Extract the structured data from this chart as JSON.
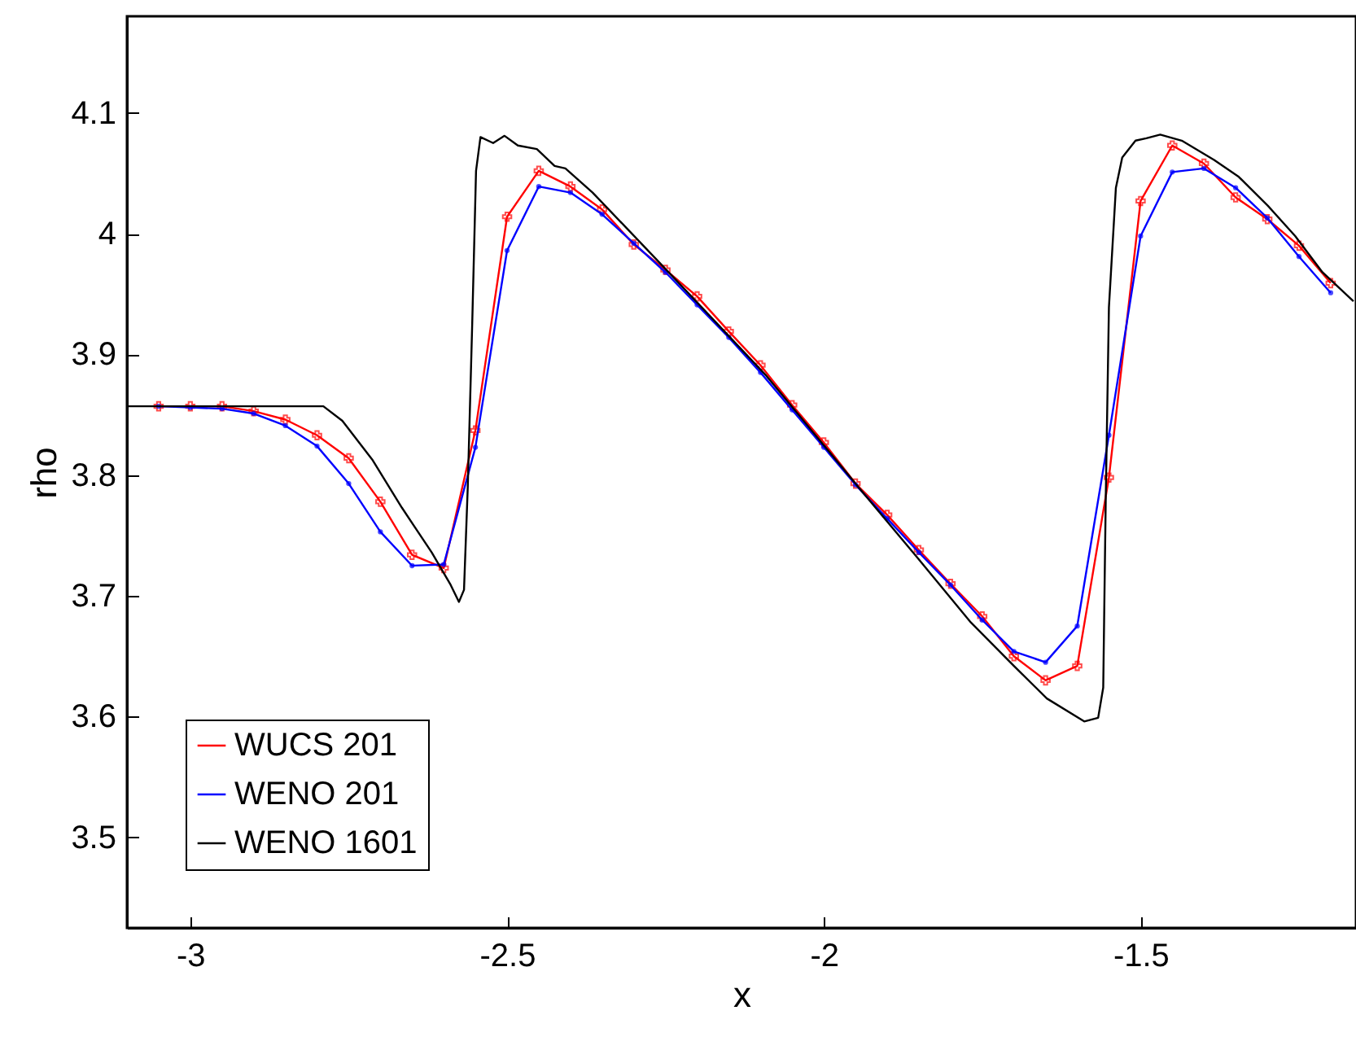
{
  "chart_data": {
    "type": "line",
    "xlabel": "x",
    "ylabel": "rho",
    "xlim": [
      -3.1,
      -1.16
    ],
    "xticks": [
      -3,
      -2.5,
      -2,
      -1.5
    ],
    "ylim": [
      3.425,
      4.18
    ],
    "yticks": [
      3.5,
      3.6,
      3.7,
      3.8,
      3.9,
      4,
      4.1
    ],
    "grid": false,
    "legend": "bottom left",
    "series": [
      {
        "name": "WUCS 201",
        "color": "#ff0000",
        "marker": "cross",
        "x": [
          -3.05,
          -3,
          -2.95,
          -2.9,
          -2.85,
          -2.8,
          -2.75,
          -2.7,
          -2.65,
          -2.6,
          -2.55,
          -2.5,
          -2.45,
          -2.4,
          -2.35,
          -2.3,
          -2.25,
          -2.2,
          -2.15,
          -2.1,
          -2.05,
          -2,
          -1.95,
          -1.9,
          -1.85,
          -1.8,
          -1.75,
          -1.7,
          -1.65,
          -1.6,
          -1.55,
          -1.5,
          -1.45,
          -1.4,
          -1.35,
          -1.3,
          -1.25,
          -1.2
        ],
        "values": [
          3.857,
          3.857,
          3.857,
          3.853,
          3.846,
          3.833,
          3.814,
          3.778,
          3.734,
          3.723,
          3.837,
          4.014,
          4.052,
          4.039,
          4.02,
          3.991,
          3.97,
          3.948,
          3.919,
          3.891,
          3.858,
          3.827,
          3.793,
          3.767,
          3.738,
          3.71,
          3.683,
          3.65,
          3.63,
          3.642,
          3.798,
          4.027,
          4.073,
          4.058,
          4.03,
          4.012,
          3.99,
          3.959
        ]
      },
      {
        "name": "WENO 201",
        "color": "#0000ff",
        "marker": "circle",
        "x": [
          -3.05,
          -3,
          -2.95,
          -2.9,
          -2.85,
          -2.8,
          -2.75,
          -2.7,
          -2.65,
          -2.6,
          -2.55,
          -2.5,
          -2.45,
          -2.4,
          -2.35,
          -2.3,
          -2.25,
          -2.2,
          -2.15,
          -2.1,
          -2.05,
          -2,
          -1.95,
          -1.9,
          -1.85,
          -1.8,
          -1.75,
          -1.7,
          -1.65,
          -1.6,
          -1.55,
          -1.5,
          -1.45,
          -1.4,
          -1.35,
          -1.3,
          -1.25,
          -1.2
        ],
        "values": [
          3.857,
          3.856,
          3.855,
          3.851,
          3.841,
          3.824,
          3.793,
          3.753,
          3.725,
          3.726,
          3.823,
          3.986,
          4.039,
          4.034,
          4.016,
          3.992,
          3.968,
          3.941,
          3.914,
          3.885,
          3.854,
          3.823,
          3.792,
          3.764,
          3.736,
          3.709,
          3.68,
          3.654,
          3.645,
          3.675,
          3.833,
          3.998,
          4.051,
          4.054,
          4.038,
          4.013,
          3.981,
          3.951
        ]
      },
      {
        "name": "WENO 1601",
        "color": "#000000",
        "marker": "none",
        "x": [
          -3.1,
          -2.79,
          -2.76,
          -2.713,
          -2.666,
          -2.619,
          -2.589,
          -2.576,
          -2.568,
          -2.562,
          -2.555,
          -2.549,
          -2.542,
          -2.522,
          -2.504,
          -2.483,
          -2.453,
          -2.425,
          -2.408,
          -2.365,
          -2.254,
          -2.092,
          -1.939,
          -1.853,
          -1.768,
          -1.734,
          -1.7,
          -1.648,
          -1.589,
          -1.567,
          -1.559,
          -1.555,
          -1.55,
          -1.539,
          -1.529,
          -1.508,
          -1.491,
          -1.469,
          -1.435,
          -1.384,
          -1.345,
          -1.299,
          -1.256,
          -1.213,
          -1.164
        ],
        "values": [
          3.857,
          3.857,
          3.845,
          3.813,
          3.773,
          3.736,
          3.709,
          3.695,
          3.705,
          3.791,
          3.926,
          4.052,
          4.08,
          4.075,
          4.081,
          4.073,
          4.07,
          4.056,
          4.054,
          4.034,
          3.973,
          3.883,
          3.786,
          3.732,
          3.678,
          3.66,
          3.642,
          3.615,
          3.596,
          3.599,
          3.624,
          3.781,
          3.939,
          4.038,
          4.063,
          4.077,
          4.079,
          4.082,
          4.077,
          4.061,
          4.047,
          4.023,
          3.998,
          3.968,
          3.944
        ]
      }
    ]
  }
}
